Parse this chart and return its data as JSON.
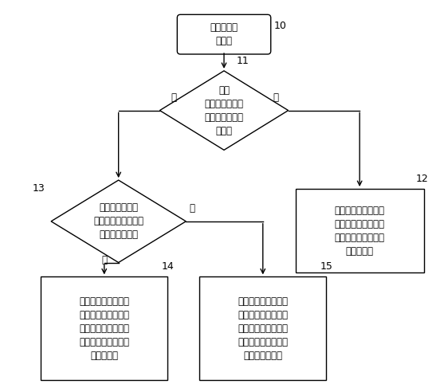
{
  "bg_color": "#ffffff",
  "line_color": "#000000",
  "node_color": "#ffffff",
  "font_color": "#000000",
  "font_size": 8.5,
  "label_font_size": 9,
  "start_text": "电话模块接\n收来电",
  "d1_text": "通过\n距离感应器判断\n手机是否处于黑\n箱状态",
  "d2_text": "通过重力感应器\n判断用户手机放置状\n态是否水平放置",
  "box12_text": "当判断手机不处于黑\n箱中，则自动控制切\n换来电情景模式为铃\n声但不震动",
  "box14_text": "当判断手机处于黑箱\n中，并判断手机为水\n平放置，则自动控制\n切换来电情景模式为\n铃声不震动",
  "box15_text": "当判断手机处于黑箱\n中，并判断手机处于\n非水平放置，则自动\n控制切换来电情景模\n式为铃声加震动",
  "label_10": "10",
  "label_11": "11",
  "label_12": "12",
  "label_13": "13",
  "label_14": "14",
  "label_15": "15",
  "yes1": "是",
  "no1": "否",
  "yes2": "是",
  "no2": "否"
}
